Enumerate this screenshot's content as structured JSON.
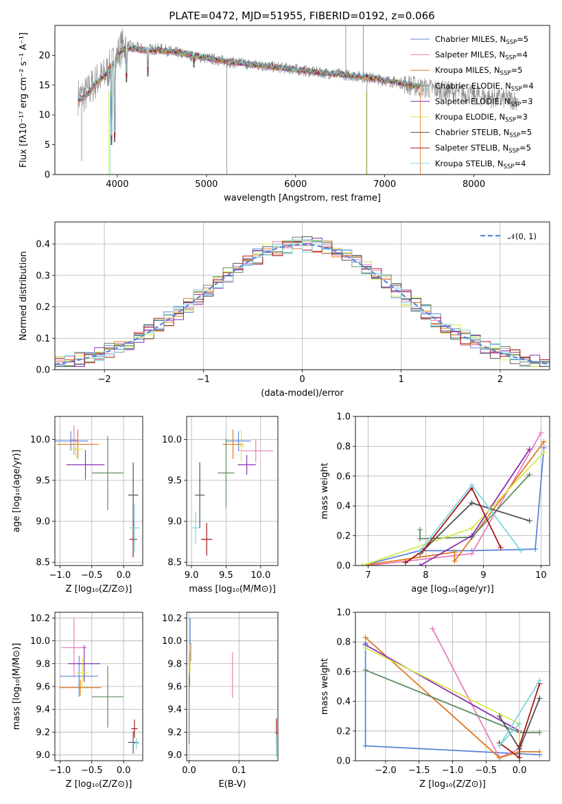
{
  "colors": [
    "#5b86d9",
    "#e87fbd",
    "#e07a1f",
    "#5e8a5e",
    "#8b2fb0",
    "#d4ea4c",
    "#505050",
    "#a81616",
    "#7ed6e0"
  ],
  "chart_data": [
    {
      "type": "line",
      "title": "PLATE=0472, MJD=51955, FIBERID=0192, z=0.066",
      "xlabel": "wavelength [Angstrom, rest frame]",
      "ylabel": "Flux [fλ10⁻¹⁷ erg cm⁻² s⁻¹ A⁻¹]",
      "xlim": [
        3300,
        8850
      ],
      "ylim": [
        0,
        25
      ],
      "xticks": [
        "4000",
        "5000",
        "6000",
        "7000",
        "8000"
      ],
      "yticks": [
        "0",
        "5",
        "10",
        "15",
        "20"
      ],
      "legend": "top-right",
      "legend_entries": [
        {
          "prefix": "Chabrier MILES, N",
          "sub": "SSP",
          "suffix": "=5"
        },
        {
          "prefix": "Salpeter MILES, N",
          "sub": "SSP",
          "suffix": "=4"
        },
        {
          "prefix": "Kroupa MILES, N",
          "sub": "SSP",
          "suffix": "=5"
        },
        {
          "prefix": "Chabrier ELODIE, N",
          "sub": "SSP",
          "suffix": "=4"
        },
        {
          "prefix": "Salpeter ELODIE, N",
          "sub": "SSP",
          "suffix": "=3"
        },
        {
          "prefix": "Kroupa ELODIE, N",
          "sub": "SSP",
          "suffix": "=3"
        },
        {
          "prefix": "Chabrier STELIB, N",
          "sub": "SSP",
          "suffix": "=5"
        },
        {
          "prefix": "Salpeter STELIB, N",
          "sub": "SSP",
          "suffix": "=5"
        },
        {
          "prefix": "Kroupa STELIB, N",
          "sub": "SSP",
          "suffix": "=4"
        }
      ],
      "data_continuum": {
        "x": [
          3560,
          3650,
          3750,
          3850,
          3950,
          4050,
          4150,
          4300,
          4500,
          4800,
          5000,
          5300,
          5600,
          5900,
          6200,
          6500,
          6800,
          7000,
          7200,
          7400,
          7600,
          7800,
          8000,
          8200,
          8400,
          8500
        ],
        "y": [
          13.0,
          13.5,
          15.5,
          16.5,
          18.5,
          21.5,
          21.5,
          21.0,
          21.0,
          20.0,
          19.5,
          18.8,
          18.3,
          17.8,
          17.2,
          16.8,
          16.3,
          15.8,
          15.3,
          14.6,
          14.2,
          13.8,
          13.3,
          12.9,
          12.6,
          12.5
        ]
      },
      "model_continuum": {
        "x": [
          3560,
          3650,
          3750,
          3850,
          3950,
          4050,
          4150,
          4300,
          4500,
          4800,
          5000,
          5300,
          5600,
          5900,
          6200,
          6500,
          6800,
          7000,
          7200,
          7400
        ],
        "y": [
          12.5,
          13.2,
          15.2,
          16.5,
          18.5,
          21.0,
          21.2,
          20.8,
          20.8,
          20.2,
          19.5,
          18.8,
          18.3,
          17.8,
          17.2,
          16.8,
          16.3,
          15.8,
          15.3,
          14.7
        ]
      },
      "absorption_dips": [
        {
          "x": 3934,
          "y": 5.0
        },
        {
          "x": 3969,
          "y": 5.5
        },
        {
          "x": 4102,
          "y": 15.5
        },
        {
          "x": 4341,
          "y": 16.5
        },
        {
          "x": 4861,
          "y": 18.0
        }
      ],
      "outliers": [
        {
          "x": 3600,
          "y": 2.3
        },
        {
          "x": 5227,
          "y": 0
        },
        {
          "x": 6563,
          "y": 25
        },
        {
          "x": 6760,
          "y": 25
        },
        {
          "x": 6800,
          "y": 0
        }
      ]
    },
    {
      "type": "step",
      "xlabel": "(data-model)/error",
      "ylabel": "Normed distribution",
      "xlim": [
        -2.5,
        2.5
      ],
      "ylim": [
        0,
        0.47
      ],
      "xticks": [
        "−2",
        "−1",
        "0",
        "1",
        "2"
      ],
      "yticks": [
        "0.0",
        "0.1",
        "0.2",
        "0.3",
        "0.4"
      ],
      "legend": "top-right",
      "reference_curve": "𝒩(0, 1)",
      "bin_width": 0.1
    },
    {
      "type": "scatter",
      "xlabel": "Z [log₁₀(Z/Z⊙)]",
      "ylabel": "age  [log₁₀(age/yr)]",
      "xlim": [
        -1.08,
        0.3
      ],
      "ylim": [
        8.46,
        10.28
      ],
      "xticks": [
        "−1.0",
        "−0.5",
        "0.0"
      ],
      "yticks": [
        "8.5",
        "9.0",
        "9.5",
        "10.0"
      ],
      "points": [
        {
          "x": -0.83,
          "y": 9.98,
          "xerr": 0.27,
          "yerr": 0.12
        },
        {
          "x": -0.78,
          "y": 9.99,
          "xerr": 0.05,
          "yerr": 0.18
        },
        {
          "x": -0.72,
          "y": 9.94,
          "xerr": 0.33,
          "yerr": 0.18
        },
        {
          "x": -0.25,
          "y": 9.59,
          "xerr": 0.25,
          "yerr": 0.45
        },
        {
          "x": -0.6,
          "y": 9.69,
          "xerr": 0.3,
          "yerr": 0.18
        },
        {
          "x": -0.75,
          "y": 9.88,
          "xerr": 0.1,
          "yerr": 0.1
        },
        {
          "x": 0.15,
          "y": 9.32,
          "xerr": 0.08,
          "yerr": 0.4
        },
        {
          "x": 0.15,
          "y": 8.78,
          "xerr": 0.06,
          "yerr": 0.22
        },
        {
          "x": 0.17,
          "y": 8.92,
          "xerr": 0.08,
          "yerr": 0.3
        }
      ]
    },
    {
      "type": "scatter",
      "xlabel": "mass [log₁₀(M/M⊙)]",
      "ylabel": "",
      "xlim": [
        8.93,
        10.25
      ],
      "ylim": [
        8.46,
        10.28
      ],
      "xticks": [
        "9.0",
        "9.5",
        "10.0"
      ],
      "yticks": [
        "8.5",
        "9.0",
        "9.5",
        "10.0"
      ],
      "points": [
        {
          "x": 9.68,
          "y": 9.98,
          "xerr": 0.18,
          "yerr": 0.12
        },
        {
          "x": 9.93,
          "y": 9.86,
          "xerr": 0.25,
          "yerr": 0.14
        },
        {
          "x": 9.6,
          "y": 9.94,
          "xerr": 0.15,
          "yerr": 0.18
        },
        {
          "x": 9.5,
          "y": 9.59,
          "xerr": 0.12,
          "yerr": 0.42
        },
        {
          "x": 9.8,
          "y": 9.69,
          "xerr": 0.13,
          "yerr": 0.12
        },
        {
          "x": 9.72,
          "y": 9.92,
          "xerr": 0.05,
          "yerr": 0.2
        },
        {
          "x": 9.12,
          "y": 9.32,
          "xerr": 0.07,
          "yerr": 0.4
        },
        {
          "x": 9.22,
          "y": 8.78,
          "xerr": 0.08,
          "yerr": 0.2
        },
        {
          "x": 9.06,
          "y": 8.92,
          "xerr": 0.05,
          "yerr": 0.2
        }
      ]
    },
    {
      "type": "line",
      "xlabel": "age  [log₁₀(age/yr)]",
      "ylabel": "mass weight",
      "xlim": [
        6.78,
        10.15
      ],
      "ylim": [
        0,
        1
      ],
      "xticks": [
        "7",
        "8",
        "9",
        "10"
      ],
      "yticks": [
        "0.0",
        "0.2",
        "0.4",
        "0.6",
        "0.8",
        "1.0"
      ],
      "series": [
        {
          "x": [
            6.9,
            7.9,
            8.8,
            9.9,
            10.05
          ],
          "y": [
            0.0,
            0.1,
            0.1,
            0.11,
            0.79
          ]
        },
        {
          "x": [
            7.0,
            8.8,
            10.0
          ],
          "y": [
            0.0,
            0.08,
            0.89
          ]
        },
        {
          "x": [
            6.9,
            8.5,
            8.5,
            10.05
          ],
          "y": [
            0.0,
            0.09,
            0.03,
            0.83
          ]
        },
        {
          "x": [
            7.9,
            7.9,
            8.8,
            9.8
          ],
          "y": [
            0.24,
            0.18,
            0.19,
            0.61
          ]
        },
        {
          "x": [
            7.9,
            8.8,
            9.8
          ],
          "y": [
            0.0,
            0.2,
            0.78
          ]
        },
        {
          "x": [
            6.9,
            8.8,
            10.05
          ],
          "y": [
            0.0,
            0.25,
            0.76
          ]
        },
        {
          "x": [
            7.9,
            8.8,
            9.8
          ],
          "y": [
            0.08,
            0.42,
            0.3
          ]
        },
        {
          "x": [
            7.65,
            7.95,
            8.8,
            9.3
          ],
          "y": [
            0.02,
            0.1,
            0.52,
            0.12
          ]
        },
        {
          "x": [
            7.9,
            8.8,
            9.65
          ],
          "y": [
            0.1,
            0.54,
            0.1
          ]
        }
      ]
    },
    {
      "type": "scatter",
      "xlabel": "Z [log₁₀(Z/Z⊙)]",
      "ylabel": "mass [log₁₀(M/M⊙)]",
      "xlim": [
        -1.08,
        0.3
      ],
      "ylim": [
        8.95,
        10.25
      ],
      "xticks": [
        "−1.0",
        "−0.5",
        "0.0"
      ],
      "yticks": [
        "9.0",
        "9.2",
        "9.4",
        "9.6",
        "9.8",
        "10.0",
        "10.2"
      ],
      "points": [
        {
          "x": -0.7,
          "y": 9.69,
          "xerr": 0.3,
          "yerr": 0.18
        },
        {
          "x": -0.78,
          "y": 9.94,
          "xerr": 0.2,
          "yerr": 0.26
        },
        {
          "x": -0.68,
          "y": 9.59,
          "xerr": 0.33,
          "yerr": 0.07
        },
        {
          "x": -0.25,
          "y": 9.51,
          "xerr": 0.25,
          "yerr": 0.27
        },
        {
          "x": -0.62,
          "y": 9.8,
          "xerr": 0.25,
          "yerr": 0.16
        },
        {
          "x": -0.65,
          "y": 9.72,
          "xerr": 0.1,
          "yerr": 0.13
        },
        {
          "x": 0.15,
          "y": 9.11,
          "xerr": 0.08,
          "yerr": 0.1
        },
        {
          "x": 0.17,
          "y": 9.23,
          "xerr": 0.05,
          "yerr": 0.08
        },
        {
          "x": 0.2,
          "y": 9.1,
          "xerr": 0.05,
          "yerr": 0.05
        }
      ]
    },
    {
      "type": "scatter",
      "xlabel": "E(B-V)",
      "ylabel": "",
      "xlim": [
        -0.005,
        0.178
      ],
      "ylim": [
        8.95,
        10.25
      ],
      "xticks": [
        "0.0",
        "0.1"
      ],
      "yticks": [
        "9.0",
        "9.2",
        "9.4",
        "9.6",
        "9.8",
        "10.0",
        "10.2"
      ],
      "points": [
        {
          "x": 0.002,
          "y": 10.0,
          "yerr": 0.2
        },
        {
          "x": 0.087,
          "y": 9.7,
          "yerr": 0.2
        },
        {
          "x": 0.001,
          "y": 9.75,
          "yerr": 0.15
        },
        {
          "x": 0.0,
          "y": 9.4,
          "yerr": 0.3
        },
        {
          "x": 0.003,
          "y": 9.9,
          "yerr": 0.08
        },
        {
          "x": 0.002,
          "y": 9.85,
          "yerr": 0.12
        },
        {
          "x": 0.175,
          "y": 9.1,
          "yerr": 0.1
        },
        {
          "x": 0.175,
          "y": 9.2,
          "yerr": 0.12
        },
        {
          "x": 0.175,
          "y": 9.08,
          "yerr": 0.1
        }
      ]
    },
    {
      "type": "line",
      "xlabel": "Z [log₁₀(Z/Z⊙)]",
      "ylabel": "mass weight",
      "xlim": [
        -2.45,
        0.45
      ],
      "ylim": [
        0,
        1
      ],
      "xticks": [
        "−2.0",
        "−1.5",
        "−1.0",
        "−0.5",
        "0.0"
      ],
      "yticks": [
        "0.0",
        "0.2",
        "0.4",
        "0.6",
        "0.8",
        "1.0"
      ],
      "series": [
        {
          "x": [
            -2.3,
            -2.3,
            0.3
          ],
          "y": [
            0.79,
            0.1,
            0.04
          ]
        },
        {
          "x": [
            -1.3,
            -0.3,
            0.0
          ],
          "y": [
            0.89,
            0.02,
            0.08
          ]
        },
        {
          "x": [
            -2.3,
            -0.3,
            0.0,
            0.3
          ],
          "y": [
            0.83,
            0.02,
            0.06,
            0.06
          ]
        },
        {
          "x": [
            -2.3,
            0.0,
            0.3
          ],
          "y": [
            0.61,
            0.19,
            0.19
          ]
        },
        {
          "x": [
            -2.3,
            0.0,
            0.0
          ],
          "y": [
            0.78,
            0.2,
            0.0
          ]
        },
        {
          "x": [
            -2.3,
            0.0,
            0.0
          ],
          "y": [
            0.76,
            0.25,
            0.0
          ]
        },
        {
          "x": [
            -0.3,
            0.0,
            0.3
          ],
          "y": [
            0.3,
            0.08,
            0.42
          ]
        },
        {
          "x": [
            -0.3,
            0.0,
            0.0,
            0.3
          ],
          "y": [
            0.12,
            0.02,
            0.1,
            0.52
          ]
        },
        {
          "x": [
            0.0,
            -0.3,
            0.3
          ],
          "y": [
            0.25,
            0.1,
            0.54
          ]
        }
      ]
    }
  ]
}
